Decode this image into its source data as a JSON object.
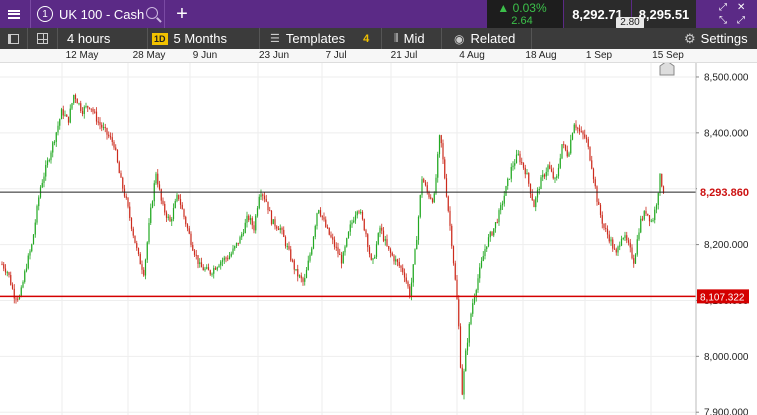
{
  "header": {
    "instrument_number": "1",
    "instrument": "UK 100 - Cash",
    "change_pct": "0.03%",
    "change_pts": "2.64",
    "bid": "8,292.71",
    "ask": "8,295.51",
    "spread": "2.80"
  },
  "toolbar": {
    "interval": "4 hours",
    "range_badge": "1D",
    "range": "5 Months",
    "templates": "Templates",
    "templates_count": "4",
    "price_mode": "Mid",
    "related": "Related",
    "settings": "Settings"
  },
  "colors": {
    "up": "#22a822",
    "down": "#cc2b1d",
    "accent": "#5b2a86",
    "current_line": "#222222",
    "level_line": "#d40000"
  },
  "chart_data": {
    "type": "candlestick",
    "x_labels": [
      "12 May",
      "28 May",
      "9 Jun",
      "23 Jun",
      "7 Jul",
      "21 Jul",
      "4 Aug",
      "18 Aug",
      "1 Sep",
      "15 Sep"
    ],
    "y_ticks": [
      "8,500.000",
      "8,400.000",
      "8,300.000",
      "8,200.000",
      "8,100.000",
      "8,000.000",
      "7,900.000"
    ],
    "ylim": [
      7895,
      8525
    ],
    "current_price": 8293.86,
    "current_price_label": "8,293.860",
    "level_price": 8107.322,
    "level_label": "8,107.322",
    "grid": true,
    "path_points": [
      [
        0,
        8170
      ],
      [
        8,
        8150
      ],
      [
        14,
        8110
      ],
      [
        20,
        8105
      ],
      [
        26,
        8160
      ],
      [
        32,
        8200
      ],
      [
        40,
        8300
      ],
      [
        48,
        8350
      ],
      [
        56,
        8400
      ],
      [
        62,
        8440
      ],
      [
        68,
        8420
      ],
      [
        74,
        8470
      ],
      [
        82,
        8440
      ],
      [
        90,
        8450
      ],
      [
        98,
        8420
      ],
      [
        106,
        8400
      ],
      [
        114,
        8380
      ],
      [
        120,
        8320
      ],
      [
        126,
        8280
      ],
      [
        132,
        8230
      ],
      [
        138,
        8180
      ],
      [
        144,
        8150
      ],
      [
        150,
        8250
      ],
      [
        156,
        8330
      ],
      [
        162,
        8270
      ],
      [
        170,
        8240
      ],
      [
        178,
        8290
      ],
      [
        184,
        8250
      ],
      [
        192,
        8200
      ],
      [
        200,
        8160
      ],
      [
        210,
        8150
      ],
      [
        220,
        8170
      ],
      [
        230,
        8180
      ],
      [
        240,
        8210
      ],
      [
        248,
        8250
      ],
      [
        254,
        8230
      ],
      [
        260,
        8300
      ],
      [
        266,
        8280
      ],
      [
        272,
        8240
      ],
      [
        280,
        8230
      ],
      [
        288,
        8190
      ],
      [
        296,
        8150
      ],
      [
        304,
        8130
      ],
      [
        312,
        8200
      ],
      [
        318,
        8270
      ],
      [
        326,
        8230
      ],
      [
        334,
        8200
      ],
      [
        342,
        8170
      ],
      [
        350,
        8230
      ],
      [
        358,
        8270
      ],
      [
        366,
        8220
      ],
      [
        372,
        8160
      ],
      [
        380,
        8230
      ],
      [
        388,
        8190
      ],
      [
        396,
        8170
      ],
      [
        404,
        8150
      ],
      [
        410,
        8110
      ],
      [
        416,
        8200
      ],
      [
        422,
        8320
      ],
      [
        428,
        8290
      ],
      [
        434,
        8280
      ],
      [
        440,
        8400
      ],
      [
        446,
        8300
      ],
      [
        452,
        8200
      ],
      [
        458,
        8080
      ],
      [
        462,
        7930
      ],
      [
        466,
        8010
      ],
      [
        472,
        8090
      ],
      [
        478,
        8140
      ],
      [
        486,
        8200
      ],
      [
        494,
        8230
      ],
      [
        500,
        8260
      ],
      [
        506,
        8300
      ],
      [
        512,
        8340
      ],
      [
        518,
        8360
      ],
      [
        526,
        8330
      ],
      [
        534,
        8270
      ],
      [
        540,
        8310
      ],
      [
        548,
        8340
      ],
      [
        556,
        8310
      ],
      [
        562,
        8380
      ],
      [
        568,
        8360
      ],
      [
        574,
        8420
      ],
      [
        580,
        8400
      ],
      [
        586,
        8390
      ],
      [
        592,
        8340
      ],
      [
        598,
        8270
      ],
      [
        604,
        8230
      ],
      [
        610,
        8210
      ],
      [
        616,
        8180
      ],
      [
        622,
        8220
      ],
      [
        628,
        8200
      ],
      [
        634,
        8170
      ],
      [
        640,
        8240
      ],
      [
        646,
        8260
      ],
      [
        652,
        8240
      ],
      [
        656,
        8270
      ],
      [
        660,
        8320
      ],
      [
        664,
        8294
      ]
    ]
  }
}
